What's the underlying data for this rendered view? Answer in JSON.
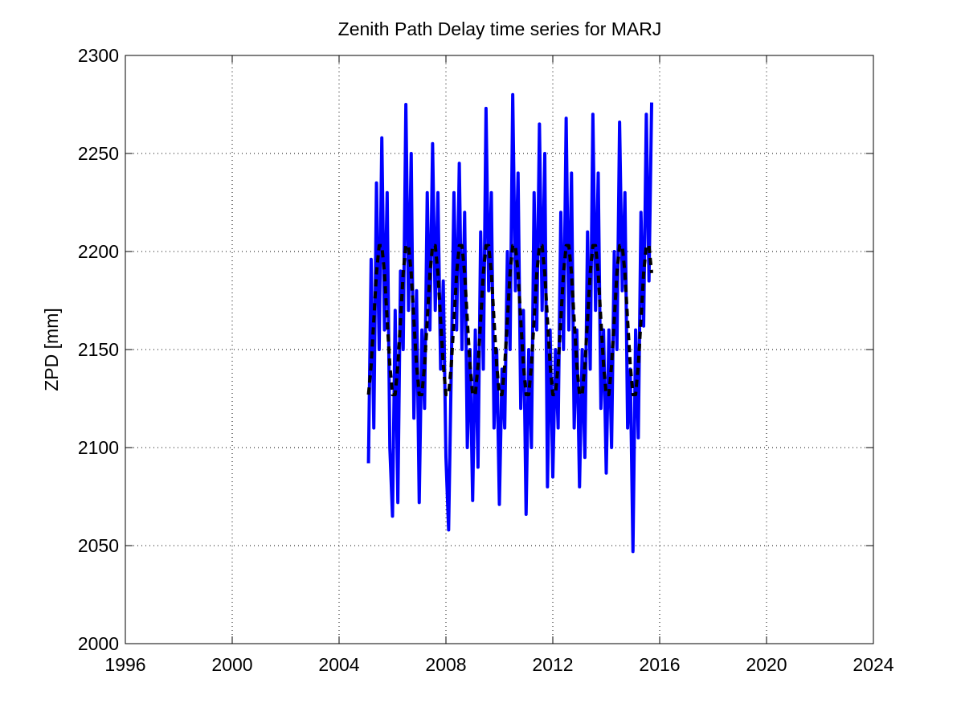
{
  "chart_data": {
    "type": "line",
    "title": "Zenith Path Delay time series for MARJ",
    "ylabel": "ZPD [mm]",
    "x": [
      2005.1,
      2005.2,
      2005.3,
      2005.4,
      2005.5,
      2005.6,
      2005.7,
      2005.8,
      2005.9,
      2006.0,
      2006.1,
      2006.2,
      2006.3,
      2006.4,
      2006.5,
      2006.6,
      2006.7,
      2006.8,
      2006.9,
      2007.0,
      2007.1,
      2007.2,
      2007.3,
      2007.4,
      2007.5,
      2007.6,
      2007.7,
      2007.8,
      2007.9,
      2008.0,
      2008.1,
      2008.2,
      2008.3,
      2008.4,
      2008.5,
      2008.6,
      2008.7,
      2008.8,
      2008.9,
      2009.0,
      2009.1,
      2009.2,
      2009.3,
      2009.4,
      2009.5,
      2009.6,
      2009.7,
      2009.8,
      2009.9,
      2010.0,
      2010.1,
      2010.2,
      2010.3,
      2010.4,
      2010.5,
      2010.6,
      2010.7,
      2010.8,
      2010.9,
      2011.0,
      2011.1,
      2011.2,
      2011.3,
      2011.4,
      2011.5,
      2011.6,
      2011.7,
      2011.8,
      2011.9,
      2012.0,
      2012.1,
      2012.2,
      2012.3,
      2012.4,
      2012.5,
      2012.6,
      2012.7,
      2012.8,
      2012.9,
      2013.0,
      2013.1,
      2013.2,
      2013.3,
      2013.4,
      2013.5,
      2013.6,
      2013.7,
      2013.8,
      2013.9,
      2014.0,
      2014.1,
      2014.2,
      2014.3,
      2014.4,
      2014.5,
      2014.6,
      2014.7,
      2014.8,
      2014.9,
      2015.0,
      2015.1,
      2015.2,
      2015.3,
      2015.4,
      2015.5,
      2015.6,
      2015.7
    ],
    "series": [
      {
        "color": "#0000ff",
        "style": "solid",
        "values": [
          2092,
          2196,
          2110,
          2235,
          2150,
          2258,
          2160,
          2230,
          2100,
          2065,
          2170,
          2072,
          2190,
          2150,
          2275,
          2170,
          2250,
          2115,
          2180,
          2072,
          2160,
          2120,
          2230,
          2160,
          2255,
          2170,
          2230,
          2140,
          2185,
          2095,
          2058,
          2140,
          2230,
          2160,
          2245,
          2150,
          2220,
          2100,
          2150,
          2073,
          2160,
          2090,
          2210,
          2140,
          2273,
          2180,
          2230,
          2110,
          2150,
          2071,
          2140,
          2110,
          2200,
          2150,
          2280,
          2180,
          2240,
          2120,
          2170,
          2066,
          2150,
          2100,
          2230,
          2160,
          2265,
          2170,
          2250,
          2080,
          2160,
          2085,
          2150,
          2110,
          2220,
          2150,
          2268,
          2160,
          2240,
          2110,
          2160,
          2080,
          2150,
          2095,
          2210,
          2140,
          2270,
          2170,
          2240,
          2120,
          2160,
          2087,
          2160,
          2100,
          2200,
          2150,
          2266,
          2180,
          2230,
          2110,
          2140,
          2047,
          2160,
          2105,
          2220,
          2162,
          2270,
          2185,
          2276
        ]
      },
      {
        "color": "#000000",
        "style": "dashed",
        "values": [
          2127,
          2142,
          2165,
          2189,
          2203,
          2203,
          2189,
          2165,
          2142,
          2127,
          2127,
          2142,
          2165,
          2189,
          2203,
          2203,
          2189,
          2165,
          2142,
          2127,
          2127,
          2142,
          2165,
          2189,
          2203,
          2203,
          2189,
          2165,
          2142,
          2127,
          2127,
          2142,
          2165,
          2189,
          2203,
          2203,
          2189,
          2165,
          2142,
          2127,
          2127,
          2142,
          2165,
          2189,
          2203,
          2203,
          2189,
          2165,
          2142,
          2127,
          2127,
          2142,
          2165,
          2189,
          2203,
          2203,
          2189,
          2165,
          2142,
          2127,
          2127,
          2142,
          2165,
          2189,
          2203,
          2203,
          2189,
          2165,
          2142,
          2127,
          2127,
          2142,
          2165,
          2189,
          2203,
          2203,
          2189,
          2165,
          2142,
          2127,
          2127,
          2142,
          2165,
          2189,
          2203,
          2203,
          2189,
          2165,
          2142,
          2127,
          2127,
          2142,
          2165,
          2189,
          2203,
          2203,
          2189,
          2165,
          2142,
          2127,
          2127,
          2142,
          2165,
          2189,
          2203,
          2203,
          2189
        ]
      }
    ],
    "xlim": [
      1996,
      2024
    ],
    "xticks": [
      1996,
      2000,
      2004,
      2008,
      2012,
      2016,
      2020,
      2024
    ],
    "ylim": [
      2000,
      2300
    ],
    "yticks": [
      2000,
      2050,
      2100,
      2150,
      2200,
      2250,
      2300
    ],
    "grid": true
  }
}
